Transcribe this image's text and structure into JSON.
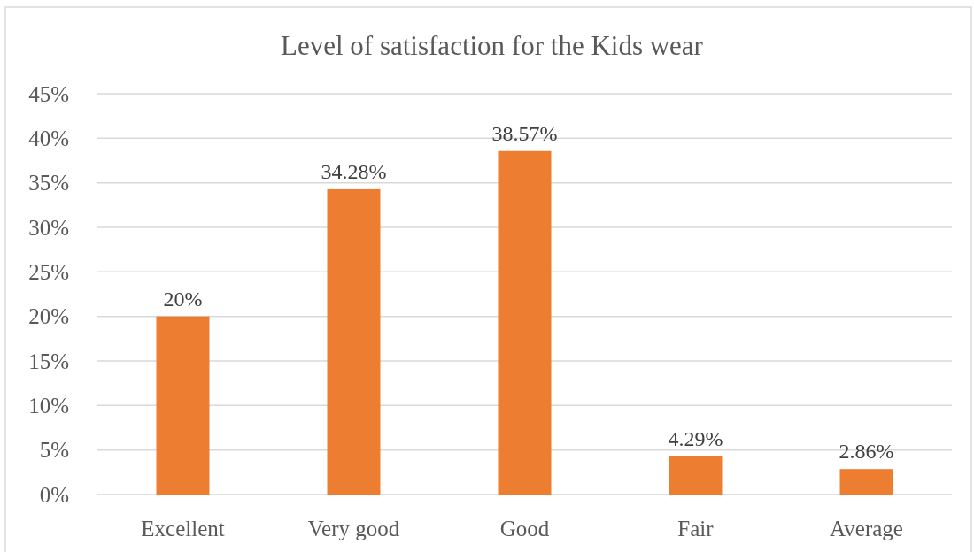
{
  "chart_data": {
    "type": "bar",
    "title": "Level of satisfaction for the Kids wear",
    "categories": [
      "Excellent",
      "Very good",
      "Good",
      "Fair",
      "Average"
    ],
    "values": [
      20,
      34.28,
      38.57,
      4.29,
      2.86
    ],
    "value_labels": [
      "20%",
      "34.28%",
      "38.57%",
      "4.29%",
      "2.86%"
    ],
    "color": "#ed7d31",
    "ylim": [
      0,
      45
    ],
    "yticks": [
      {
        "value": 0,
        "label": "0%"
      },
      {
        "value": 5,
        "label": "5%"
      },
      {
        "value": 10,
        "label": "10%"
      },
      {
        "value": 15,
        "label": "15%"
      },
      {
        "value": 20,
        "label": "20%"
      },
      {
        "value": 25,
        "label": "25%"
      },
      {
        "value": 30,
        "label": "30%"
      },
      {
        "value": 35,
        "label": "35%"
      },
      {
        "value": 40,
        "label": "40%"
      },
      {
        "value": 45,
        "label": "45%"
      }
    ],
    "grid": "y"
  }
}
